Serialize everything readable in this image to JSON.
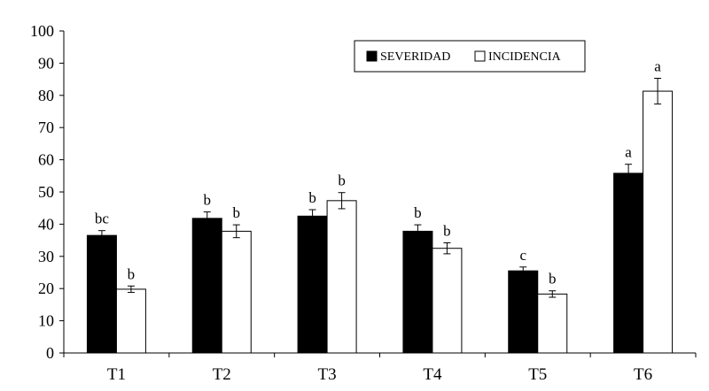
{
  "chart_data": {
    "type": "bar",
    "categories": [
      "T1",
      "T2",
      "T3",
      "T4",
      "T5",
      "T6"
    ],
    "series": [
      {
        "name": "SEVERIDAD",
        "color": "#000000",
        "values": [
          36.5,
          41.8,
          42.5,
          37.8,
          25.5,
          55.8
        ],
        "errors": [
          1.5,
          2.0,
          2.0,
          2.0,
          1.2,
          2.8
        ],
        "letters": [
          "bc",
          "b",
          "b",
          "b",
          "c",
          "a"
        ]
      },
      {
        "name": "INCIDENCIA",
        "color": "#ffffff",
        "values": [
          19.8,
          37.8,
          47.3,
          32.5,
          18.3,
          81.3
        ],
        "errors": [
          1.0,
          2.0,
          2.5,
          1.7,
          1.0,
          4.0
        ],
        "letters": [
          "b",
          "b",
          "b",
          "b",
          "b",
          "a"
        ]
      }
    ],
    "title": "",
    "xlabel": "",
    "ylabel": "",
    "ylim": [
      0,
      100
    ],
    "yticks": [
      0,
      10,
      20,
      30,
      40,
      50,
      60,
      70,
      80,
      90,
      100
    ],
    "grid": false,
    "legend_position": "top-right"
  }
}
